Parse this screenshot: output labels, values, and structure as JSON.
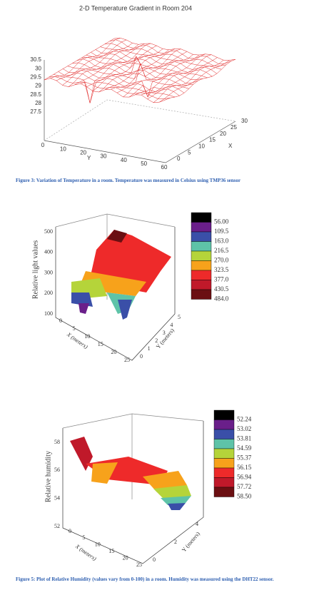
{
  "figures": [
    {
      "title": "2-D Temperature Gradient in Room 204",
      "z_ticks": [
        "30.5",
        "30",
        "29.5",
        "29",
        "28.5",
        "28",
        "27.5"
      ],
      "y_ticks": [
        "0",
        "10",
        "20",
        "30",
        "40",
        "50",
        "60"
      ],
      "y_label": "Y",
      "x_ticks": [
        "0",
        "5",
        "10",
        "15",
        "20",
        "25",
        "30"
      ],
      "x_label": "X",
      "caption": "Figure 3: Variation of Temperature in a room. Temperature was measured in Celsius using TMP36 sensor"
    },
    {
      "z_label": "Relative light values",
      "z_ticks": [
        "500",
        "400",
        "300",
        "200",
        "100"
      ],
      "x_ticks": [
        "0",
        "5",
        "10",
        "15",
        "20",
        "25"
      ],
      "x_label": "X (meters)",
      "y_ticks": [
        "0",
        "1",
        "2",
        "3",
        "4",
        "5"
      ],
      "y_label": "Y (meters)",
      "legend": {
        "labels": [
          "56.00",
          "109.5",
          "163.0",
          "216.5",
          "270.0",
          "323.5",
          "377.0",
          "430.5",
          "484.0"
        ],
        "colors": [
          "#000000",
          "#6a1f8a",
          "#3a4fa8",
          "#5ec3a8",
          "#b5d43a",
          "#f7a21b",
          "#ee2a2a",
          "#c0192a",
          "#6b0f12"
        ]
      }
    },
    {
      "z_label": "Relative humidity",
      "z_ticks": [
        "58",
        "56",
        "54",
        "52"
      ],
      "x_ticks": [
        "0",
        "5",
        "10",
        "15",
        "20",
        "25"
      ],
      "x_label": "X (meters)",
      "y_ticks": [
        "0",
        "2",
        "4"
      ],
      "y_label": "Y (meters)",
      "legend": {
        "labels": [
          "52.24",
          "53.02",
          "53.81",
          "54.59",
          "55.37",
          "56.15",
          "56.94",
          "57.72",
          "58.50"
        ],
        "colors": [
          "#000000",
          "#6a1f8a",
          "#3a4fa8",
          "#5ec3a8",
          "#b5d43a",
          "#f7a21b",
          "#ee2a2a",
          "#c0192a",
          "#6b0f12"
        ]
      },
      "caption": "Figure 5: Plot of Relative Humidity (values vary from 0-100) in a room. Humidity was measured using the DHT22 sensor."
    }
  ]
}
